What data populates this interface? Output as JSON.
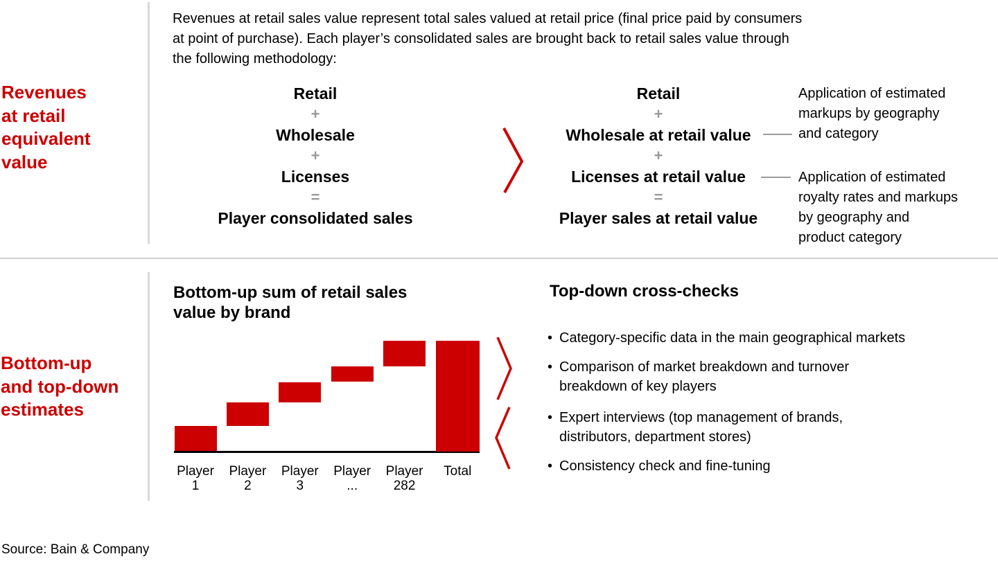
{
  "colors": {
    "accent_red": "#cc0000",
    "operator_gray": "#999999",
    "guide_gray": "#d8d8d8"
  },
  "top_section": {
    "heading_lines": [
      "Revenues",
      "at retail",
      "equivalent",
      "value"
    ],
    "intro_lines": [
      "Revenues at retail sales value represent total sales valued at retail price (final price paid by consumers",
      "at point of purchase). Each player’s consolidated sales are brought back to retail sales value through",
      "the following methodology:"
    ],
    "left_formula": {
      "rows": [
        {
          "type": "term",
          "text": "Retail"
        },
        {
          "type": "op",
          "text": "+"
        },
        {
          "type": "term",
          "text": "Wholesale"
        },
        {
          "type": "op",
          "text": "+"
        },
        {
          "type": "term",
          "text": "Licenses"
        },
        {
          "type": "op",
          "text": "="
        },
        {
          "type": "term",
          "text": "Player consolidated sales"
        }
      ]
    },
    "right_formula": {
      "rows": [
        {
          "type": "term",
          "text": "Retail"
        },
        {
          "type": "op",
          "text": "+"
        },
        {
          "type": "term",
          "text": "Wholesale at retail value"
        },
        {
          "type": "op",
          "text": "+"
        },
        {
          "type": "term",
          "text": "Licenses at retail value"
        },
        {
          "type": "op",
          "text": "="
        },
        {
          "type": "term",
          "text": "Player sales at retail value"
        }
      ]
    },
    "annotations": [
      {
        "lines": [
          "Application of estimated",
          "markups by geography",
          "and category"
        ]
      },
      {
        "lines": [
          "Application of estimated",
          "royalty rates and markups",
          "by geography and",
          "product category"
        ]
      }
    ]
  },
  "bottom_section": {
    "heading_lines": [
      "Bottom-up",
      "and top-down",
      "estimates"
    ],
    "chart_title_lines": [
      "Bottom-up sum of retail sales",
      "value by brand"
    ],
    "cross_checks": {
      "heading": "Top-down cross-checks",
      "bullets": [
        {
          "lines": [
            "Category-specific data in the main geographical markets"
          ]
        },
        {
          "lines": [
            "Comparison of market breakdown and turnover",
            "breakdown of key players"
          ]
        },
        {
          "lines": [
            "Expert interviews (top management of brands,",
            "distributors, department stores)"
          ]
        },
        {
          "lines": [
            "Consistency check and fine-tuning"
          ]
        }
      ]
    }
  },
  "source": "Source: Bain & Company",
  "chart_data": {
    "type": "bar",
    "subtype": "waterfall",
    "title": "Bottom-up sum of retail sales value by brand",
    "categories": [
      "Player 1",
      "Player 2",
      "Player 3",
      "Player ...",
      "Player 282",
      "Total"
    ],
    "x_tick_lines": [
      [
        "Player",
        "1"
      ],
      [
        "Player",
        "2"
      ],
      [
        "Player",
        "3"
      ],
      [
        "Player",
        "..."
      ],
      [
        "Player",
        "282"
      ],
      [
        "Total"
      ]
    ],
    "segments": [
      {
        "label": "Player 1",
        "start": 0,
        "end": 23
      },
      {
        "label": "Player 2",
        "start": 23,
        "end": 44
      },
      {
        "label": "Player 3",
        "start": 44,
        "end": 62.5
      },
      {
        "label": "Player ...",
        "start": 62.5,
        "end": 76.5
      },
      {
        "label": "Player 282",
        "start": 76.5,
        "end": 100
      },
      {
        "label": "Total",
        "start": 0,
        "end": 100
      }
    ],
    "values_pct_of_total": [
      23,
      21,
      18.5,
      14,
      23.5,
      100
    ],
    "bar_color": "#cc0000",
    "value_axis_shown": false,
    "grid": false,
    "legend": false
  }
}
